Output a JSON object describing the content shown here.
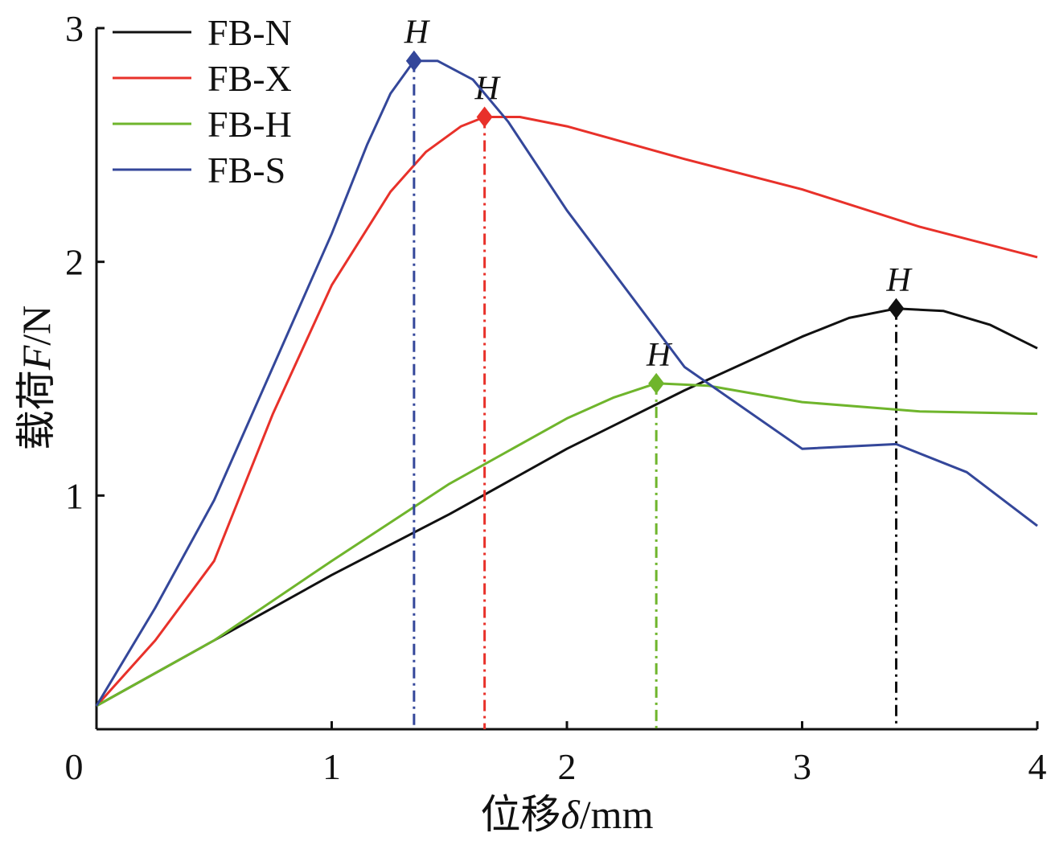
{
  "chart_data": {
    "type": "line",
    "title": "",
    "xlabel": {
      "prefix": "位移",
      "var": "δ",
      "suffix": "/mm"
    },
    "ylabel": {
      "prefix": "载荷",
      "var": "F",
      "suffix": "/N"
    },
    "xlim": [
      0,
      4
    ],
    "ylim": [
      0,
      3
    ],
    "xticks": [
      "0",
      "1",
      "2",
      "3",
      "4"
    ],
    "yticks": [
      "1",
      "2",
      "3"
    ],
    "grid": false,
    "legend_placement": "top-left",
    "peak_label": "H",
    "series": [
      {
        "name": "FB-N",
        "color": "#111111",
        "x": [
          0,
          0.5,
          1,
          1.5,
          2,
          2.5,
          3,
          3.2,
          3.4,
          3.6,
          3.8,
          4
        ],
        "y": [
          0.1,
          0.38,
          0.66,
          0.92,
          1.2,
          1.45,
          1.68,
          1.76,
          1.8,
          1.79,
          1.73,
          1.63
        ],
        "peak": [
          3.4,
          1.8
        ]
      },
      {
        "name": "FB-X",
        "color": "#e8312a",
        "x": [
          0,
          0.25,
          0.5,
          0.75,
          1,
          1.25,
          1.4,
          1.55,
          1.65,
          1.8,
          2,
          2.5,
          3,
          3.5,
          4
        ],
        "y": [
          0.1,
          0.38,
          0.72,
          1.35,
          1.9,
          2.3,
          2.47,
          2.58,
          2.62,
          2.62,
          2.58,
          2.44,
          2.31,
          2.15,
          2.02
        ],
        "peak": [
          1.65,
          2.62
        ]
      },
      {
        "name": "FB-H",
        "color": "#6fb52c",
        "x": [
          0,
          0.5,
          1,
          1.5,
          2,
          2.2,
          2.38,
          2.6,
          3,
          3.5,
          4
        ],
        "y": [
          0.1,
          0.38,
          0.72,
          1.05,
          1.33,
          1.42,
          1.48,
          1.47,
          1.4,
          1.36,
          1.35
        ],
        "peak": [
          2.38,
          1.48
        ]
      },
      {
        "name": "FB-S",
        "color": "#34479a",
        "x": [
          0,
          0.25,
          0.5,
          0.75,
          1,
          1.15,
          1.25,
          1.35,
          1.45,
          1.6,
          1.75,
          2,
          2.5,
          3,
          3.4,
          3.7,
          4
        ],
        "y": [
          0.1,
          0.52,
          0.98,
          1.55,
          2.12,
          2.5,
          2.72,
          2.86,
          2.86,
          2.78,
          2.6,
          2.22,
          1.55,
          1.2,
          1.22,
          1.1,
          0.87
        ],
        "peak": [
          1.35,
          2.86
        ]
      }
    ]
  }
}
